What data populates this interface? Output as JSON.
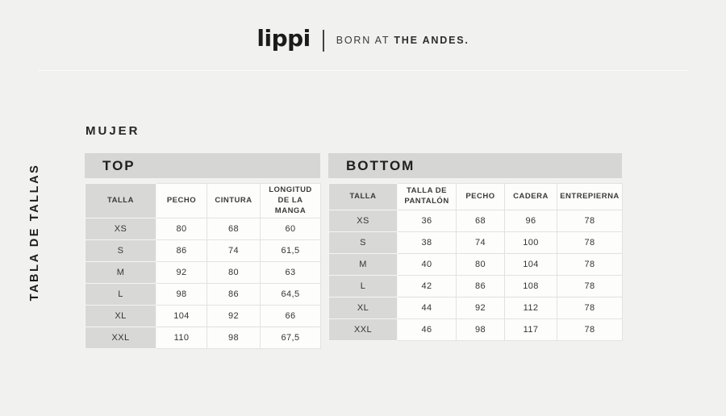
{
  "header": {
    "brand": "lippi",
    "tagline_regular": "BORN AT",
    "tagline_bold": "THE ANDES."
  },
  "sidebar_label": "TABLA DE TALLAS",
  "section_title": "MUJER",
  "tables": [
    {
      "title": "TOP",
      "columns": [
        "TALLA",
        "PECHO",
        "CINTURA",
        "LONGITUD DE LA MANGA"
      ],
      "rows": [
        [
          "XS",
          "80",
          "68",
          "60"
        ],
        [
          "S",
          "86",
          "74",
          "61,5"
        ],
        [
          "M",
          "92",
          "80",
          "63"
        ],
        [
          "L",
          "98",
          "86",
          "64,5"
        ],
        [
          "XL",
          "104",
          "92",
          "66"
        ],
        [
          "XXL",
          "110",
          "98",
          "67,5"
        ]
      ]
    },
    {
      "title": "BOTTOM",
      "columns": [
        "TALLA",
        "TALLA DE PANTALÓN",
        "PECHO",
        "CADERA",
        "ENTREPIERNA"
      ],
      "rows": [
        [
          "XS",
          "36",
          "68",
          "96",
          "78"
        ],
        [
          "S",
          "38",
          "74",
          "100",
          "78"
        ],
        [
          "M",
          "40",
          "80",
          "104",
          "78"
        ],
        [
          "L",
          "42",
          "86",
          "108",
          "78"
        ],
        [
          "XL",
          "44",
          "92",
          "112",
          "78"
        ],
        [
          "XXL",
          "46",
          "98",
          "117",
          "78"
        ]
      ]
    }
  ],
  "colors": {
    "page_background": "#f1f1f0",
    "panel_gray": "#d6d6d5",
    "cell_white": "#fdfdfc",
    "text_dark": "#333332",
    "rule_gray": "#a5a5a4"
  }
}
